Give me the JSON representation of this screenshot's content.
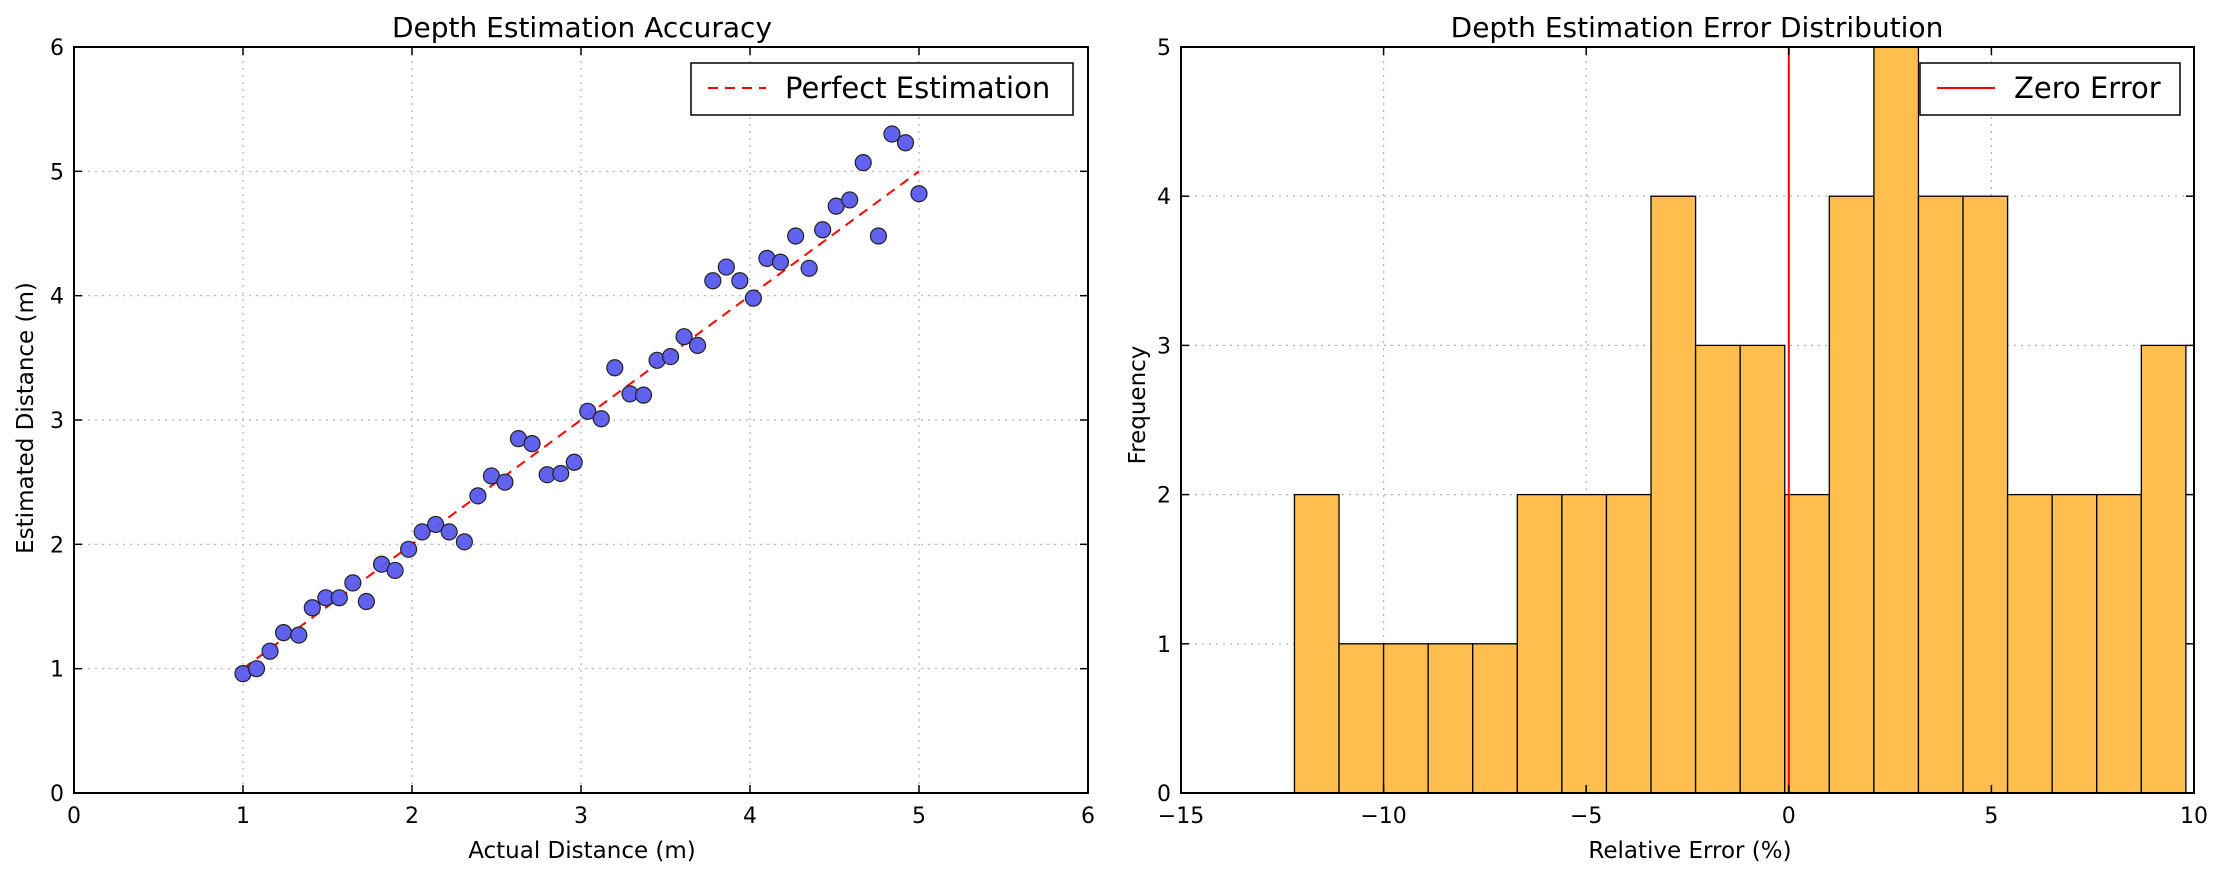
{
  "chart_data": [
    {
      "type": "scatter",
      "title": "Depth Estimation Accuracy",
      "xlabel": "Actual Distance (m)",
      "ylabel": "Estimated Distance (m)",
      "xlim": [
        0,
        6
      ],
      "ylim": [
        0,
        6
      ],
      "xticks": [
        "0",
        "1",
        "2",
        "3",
        "4",
        "5",
        "6"
      ],
      "yticks": [
        "0",
        "1",
        "2",
        "3",
        "4",
        "5",
        "6"
      ],
      "grid": true,
      "legend": {
        "position": "top-right",
        "entries": [
          "Perfect Estimation"
        ]
      },
      "colors": {
        "points": "#5a5af0",
        "reference_line": "#ff0000"
      },
      "reference_line": {
        "name": "Perfect Estimation",
        "x": [
          1,
          5
        ],
        "y": [
          1,
          5
        ]
      },
      "series": [
        {
          "x": [
            1.0,
            1.08,
            1.16,
            1.24,
            1.33,
            1.41,
            1.49,
            1.57,
            1.65,
            1.73,
            1.82,
            1.9,
            1.98,
            2.06,
            2.14,
            2.22,
            2.31,
            2.39,
            2.47,
            2.55,
            2.63,
            2.71,
            2.8,
            2.88,
            2.96,
            3.04,
            3.12,
            3.2,
            3.29,
            3.37,
            3.45,
            3.53,
            3.61,
            3.69,
            3.78,
            3.86,
            3.94,
            4.02,
            4.1,
            4.18,
            4.27,
            4.35,
            4.43,
            4.51,
            4.59,
            4.67,
            4.76,
            4.84,
            4.92,
            5.0
          ],
          "y": [
            0.96,
            1.0,
            1.14,
            1.29,
            1.27,
            1.49,
            1.57,
            1.57,
            1.69,
            1.54,
            1.84,
            1.79,
            1.96,
            2.1,
            2.16,
            2.1,
            2.02,
            2.39,
            2.55,
            2.5,
            2.85,
            2.81,
            2.56,
            2.57,
            2.66,
            3.07,
            3.01,
            3.42,
            3.21,
            3.2,
            3.48,
            3.51,
            3.67,
            3.6,
            4.12,
            4.23,
            4.12,
            3.98,
            4.3,
            4.27,
            4.48,
            4.22,
            4.53,
            4.72,
            4.77,
            5.07,
            4.48,
            5.3,
            5.23,
            4.82
          ]
        }
      ]
    },
    {
      "type": "bar",
      "title": "Depth Estimation Error Distribution",
      "xlabel": "Relative Error (%)",
      "ylabel": "Frequency",
      "xlim": [
        -15,
        10
      ],
      "ylim": [
        0,
        5
      ],
      "xticks": [
        "−15",
        "−10",
        "−5",
        "0",
        "5",
        "10"
      ],
      "yticks": [
        "0",
        "1",
        "2",
        "3",
        "4",
        "5"
      ],
      "grid": true,
      "legend": {
        "position": "top-right",
        "entries": [
          "Zero Error"
        ]
      },
      "colors": {
        "bars": "#ffbe4d",
        "bar_edge": "#000000",
        "zero_line": "#ff0000"
      },
      "zero_line": {
        "name": "Zero Error",
        "x": 0
      },
      "bin_edges": [
        -12.2,
        -11.1,
        -10.0,
        -8.9,
        -7.8,
        -6.7,
        -5.6,
        -4.5,
        -3.4,
        -2.3,
        -1.2,
        -0.1,
        1.0,
        2.1,
        3.2,
        4.3,
        5.4,
        6.5,
        7.6,
        8.7,
        9.8
      ],
      "values": [
        2,
        1,
        1,
        1,
        1,
        2,
        2,
        2,
        4,
        3,
        3,
        2,
        4,
        5,
        4,
        4,
        2,
        2,
        2,
        3
      ]
    }
  ]
}
